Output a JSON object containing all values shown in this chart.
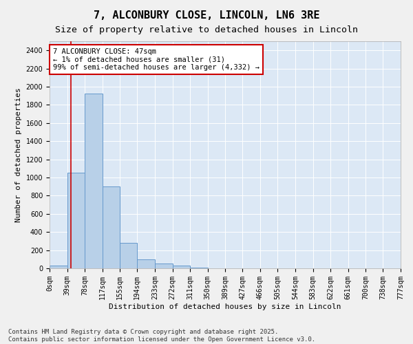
{
  "title": "7, ALCONBURY CLOSE, LINCOLN, LN6 3RE",
  "subtitle": "Size of property relative to detached houses in Lincoln",
  "xlabel": "Distribution of detached houses by size in Lincoln",
  "ylabel": "Number of detached properties",
  "bar_color": "#b8d0e8",
  "bar_edge_color": "#6699cc",
  "background_color": "#dce8f5",
  "grid_color": "#ffffff",
  "bins": [
    0,
    39,
    78,
    117,
    155,
    194,
    233,
    272,
    311,
    350,
    389,
    427,
    466,
    505,
    544,
    583,
    622,
    661,
    700,
    738,
    777
  ],
  "bin_labels": [
    "0sqm",
    "39sqm",
    "78sqm",
    "117sqm",
    "155sqm",
    "194sqm",
    "233sqm",
    "272sqm",
    "311sqm",
    "350sqm",
    "389sqm",
    "427sqm",
    "466sqm",
    "505sqm",
    "544sqm",
    "583sqm",
    "622sqm",
    "661sqm",
    "700sqm",
    "738sqm",
    "777sqm"
  ],
  "values": [
    30,
    1050,
    1925,
    900,
    280,
    100,
    55,
    30,
    5,
    0,
    0,
    0,
    0,
    0,
    0,
    0,
    0,
    0,
    0,
    0
  ],
  "ylim": [
    0,
    2500
  ],
  "yticks": [
    0,
    200,
    400,
    600,
    800,
    1000,
    1200,
    1400,
    1600,
    1800,
    2000,
    2200,
    2400
  ],
  "property_size": 47,
  "vline_color": "#cc0000",
  "annotation_box_color": "#cc0000",
  "annotation_text": "7 ALCONBURY CLOSE: 47sqm\n← 1% of detached houses are smaller (31)\n99% of semi-detached houses are larger (4,332) →",
  "footer": "Contains HM Land Registry data © Crown copyright and database right 2025.\nContains public sector information licensed under the Open Government Licence v3.0.",
  "title_fontsize": 11,
  "subtitle_fontsize": 9.5,
  "label_fontsize": 8,
  "tick_fontsize": 7,
  "annotation_fontsize": 7.5,
  "footer_fontsize": 6.5
}
